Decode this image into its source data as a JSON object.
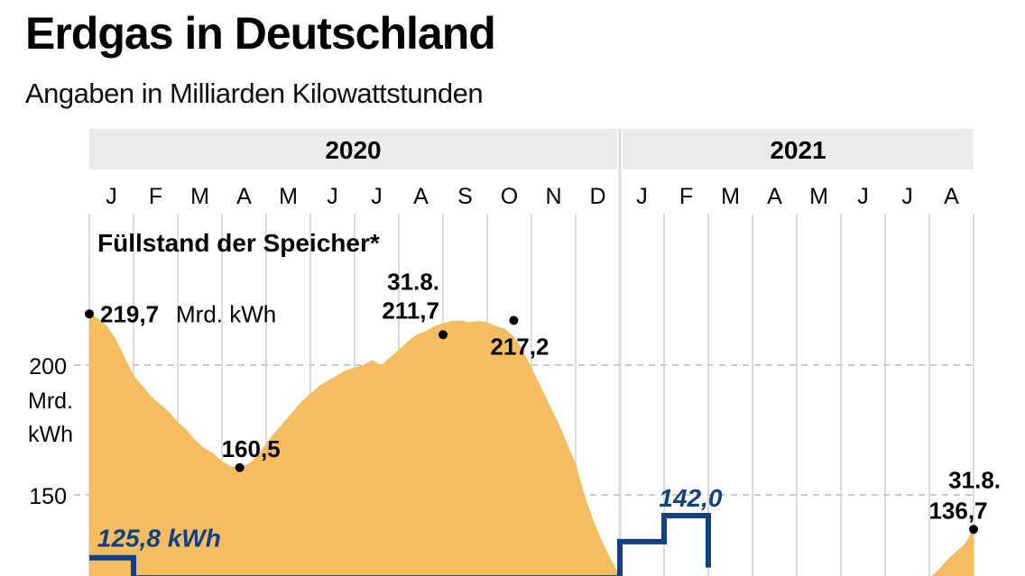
{
  "header": {
    "title": "Erdgas in Deutschland",
    "subtitle": "Angaben in Milliarden Kilowattstunden"
  },
  "chart_data": {
    "type": "area",
    "title": "Erdgas in Deutschland",
    "subtitle": "Angaben in Milliarden Kilowattstunden",
    "series_title": "Füllstand der Speicher*",
    "years": [
      {
        "label": "2020",
        "months": [
          "J",
          "F",
          "M",
          "A",
          "M",
          "J",
          "J",
          "A",
          "S",
          "O",
          "N",
          "D"
        ]
      },
      {
        "label": "2021",
        "months": [
          "J",
          "F",
          "M",
          "A",
          "M",
          "J",
          "J",
          "A"
        ]
      }
    ],
    "ylabel": "Mrd. kWh",
    "yticks": [
      {
        "value": 200,
        "label": "200"
      },
      {
        "value": 150,
        "label": "150"
      }
    ],
    "y_unit_lines": [
      "Mrd.",
      "kWh"
    ],
    "ylim": [
      118,
      240
    ],
    "grid": true,
    "colors": {
      "area": "#f5bd5f",
      "step": "#123f85",
      "grid": "#dcdcdc",
      "yearband": "#ebebeb"
    },
    "series": [
      {
        "name": "Füllstand der Speicher",
        "x_months": [
          0,
          0.2,
          0.4,
          0.6,
          0.8,
          1.0,
          1.2,
          1.4,
          1.6,
          1.8,
          2.0,
          2.2,
          2.4,
          2.6,
          2.8,
          3.0,
          3.2,
          3.4,
          3.6,
          3.8,
          4.0,
          4.2,
          4.4,
          4.6,
          4.8,
          5.0,
          5.2,
          5.4,
          5.6,
          5.8,
          6.0,
          6.2,
          6.4,
          6.6,
          6.8,
          7.0,
          7.2,
          7.4,
          7.6,
          7.8,
          8.0,
          8.2,
          8.4,
          8.6,
          8.8,
          9.0,
          9.2,
          9.4,
          9.6,
          9.8,
          10.0,
          10.2,
          10.4,
          10.6,
          10.8,
          11.0,
          11.2,
          11.4,
          11.6,
          11.8,
          12.0,
          12.2,
          12.4,
          12.6,
          12.8,
          13.0
        ],
        "values": [
          219.7,
          218,
          215,
          210,
          203,
          196,
          192,
          188,
          185,
          182,
          178,
          175,
          171,
          168,
          166,
          163,
          161,
          160.5,
          162,
          165,
          170,
          174,
          178,
          182,
          186,
          189,
          192,
          194,
          196,
          198,
          199,
          200,
          202,
          200,
          203,
          206,
          209,
          211.7,
          213,
          215,
          216,
          217,
          217.2,
          216.5,
          217,
          216.5,
          215,
          214,
          211,
          206,
          199,
          192,
          185,
          178,
          170,
          162,
          150,
          140,
          132,
          125,
          119,
          118,
          118,
          118,
          118,
          118
        ]
      },
      {
        "name": "Füllstand der Speicher (2021 tail)",
        "x_months": [
          19.0,
          19.2,
          19.4,
          19.6,
          19.8,
          20.0
        ],
        "values": [
          118,
          121,
          125,
          128,
          131,
          136.7
        ]
      },
      {
        "name": "Step series",
        "type": "step",
        "x_months": [
          0,
          1,
          11,
          12,
          13,
          14
        ],
        "values": [
          125.8,
          118,
          118,
          132,
          142.0,
          122
        ]
      }
    ],
    "annotations": [
      {
        "x_month": 0,
        "value": 219.7,
        "text": "219,7",
        "suffix": "Mrd. kWh"
      },
      {
        "x_month": 3.4,
        "value": 160.5,
        "text": "160,5"
      },
      {
        "x_month": 8.0,
        "value": 211.7,
        "text": "211,7",
        "date": "31.8."
      },
      {
        "x_month": 9.6,
        "value": 217.2,
        "text": "217,2"
      },
      {
        "x_month": 20.0,
        "value": 136.7,
        "text": "136,7",
        "date": "31.8."
      },
      {
        "x_month": 0.1,
        "value": 125.8,
        "text": "125,8 kWh",
        "style": "step"
      },
      {
        "x_month": 12.6,
        "value": 142.0,
        "text": "142,0",
        "style": "step"
      }
    ]
  }
}
